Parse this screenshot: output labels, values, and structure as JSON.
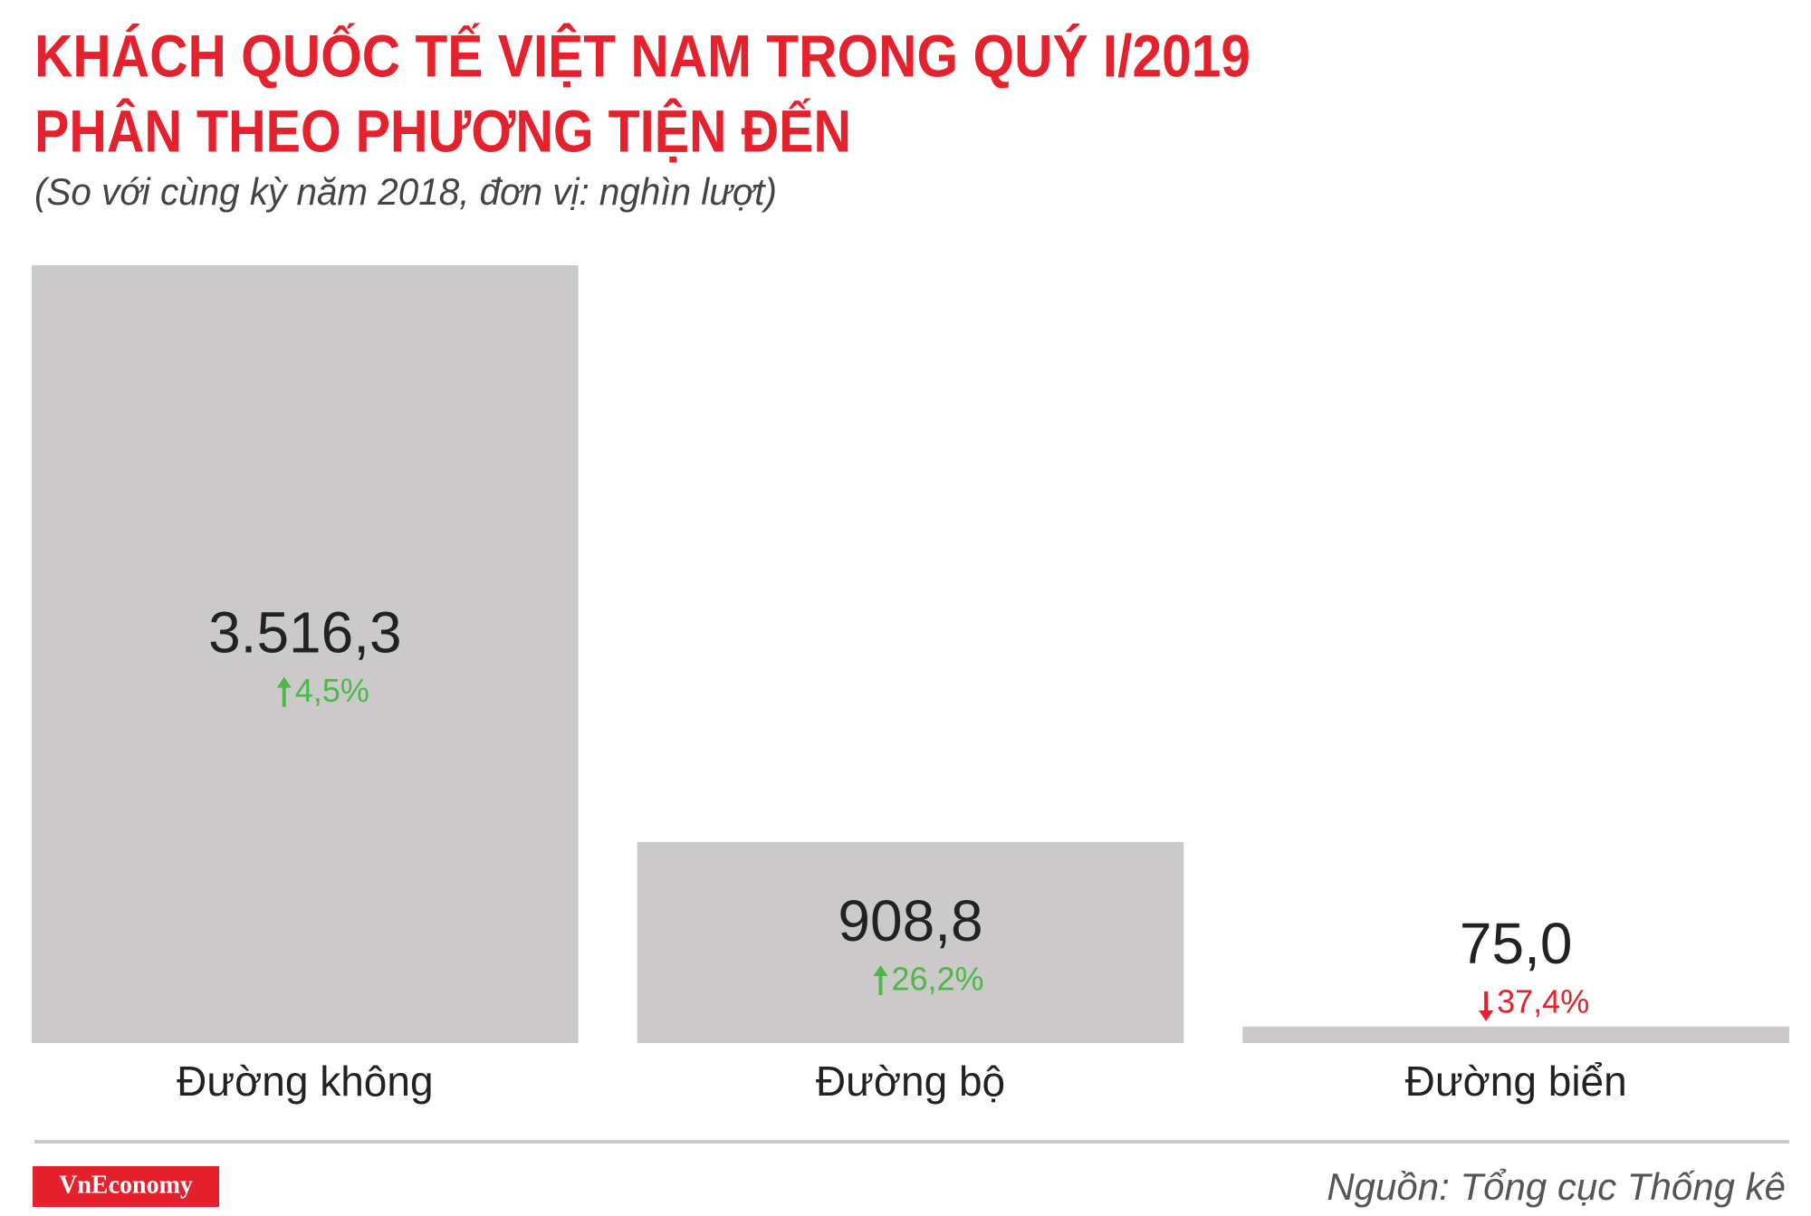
{
  "chart_data": {
    "type": "bar",
    "title": [
      "KHÁCH QUỐC TẾ VIỆT NAM TRONG QUÝ I/2019",
      "PHÂN THEO PHƯƠNG TIỆN ĐẾN"
    ],
    "subtitle": "(So với cùng kỳ năm 2018, đơn vị: nghìn lượt)",
    "categories": [
      "Đường không",
      "Đường bộ",
      "Đường biển"
    ],
    "values": [
      3516.3,
      908.8,
      75.0
    ],
    "value_labels": [
      "3.516,3",
      "908,8",
      "75,0"
    ],
    "change": [
      4.5,
      26.2,
      -37.4
    ],
    "change_labels": [
      "4,5%",
      "26,2%",
      "37,4%"
    ],
    "color": "#cbc9ca",
    "up_color": "#4cb848",
    "down_color": "#e4212c",
    "ylim": [
      0,
      3516.3
    ],
    "source": "Nguồn: Tổng cục Thống kê",
    "brand": "VnEconomy"
  }
}
